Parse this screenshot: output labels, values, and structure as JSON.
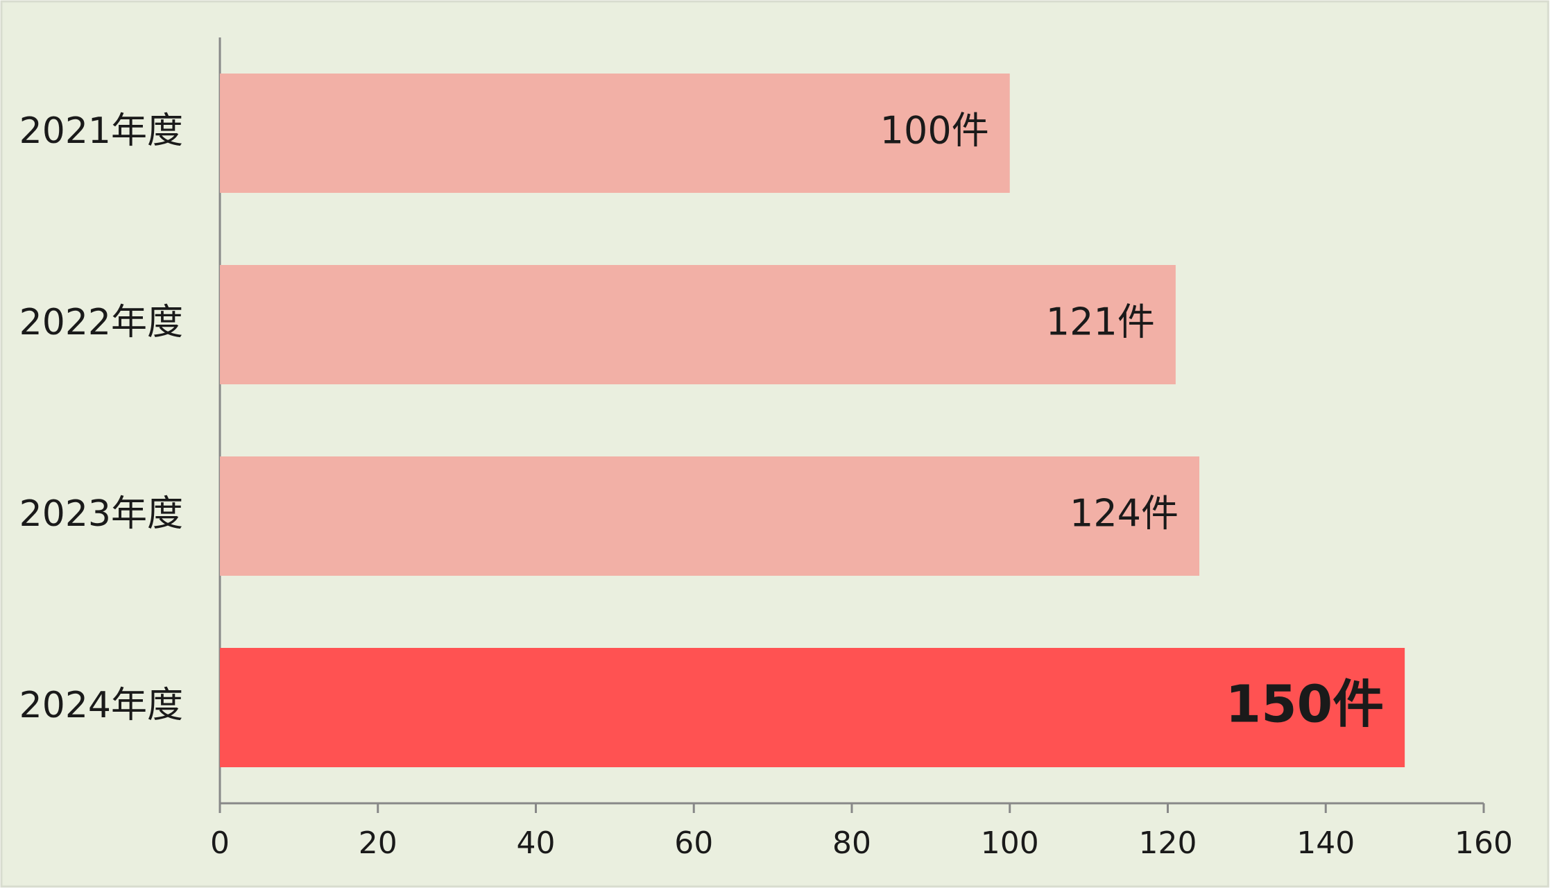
{
  "chart_data": {
    "type": "bar",
    "orientation": "horizontal",
    "categories": [
      "2021年度",
      "2022年度",
      "2023年度",
      "2024年度"
    ],
    "values": [
      100,
      121,
      124,
      150
    ],
    "value_labels": [
      "100件",
      "121件",
      "124件",
      "150件"
    ],
    "colors": [
      "#f2b0a6",
      "#f2b0a6",
      "#f2b0a6",
      "#ff5252"
    ],
    "value_label_colors": [
      "#1a1a1a",
      "#1a1a1a",
      "#1a1a1a",
      "#ffffff"
    ],
    "value_label_weights": [
      "normal",
      "normal",
      "normal",
      "bold"
    ],
    "xlim": [
      0,
      160
    ],
    "xticks": [
      0,
      20,
      40,
      60,
      80,
      100,
      120,
      140,
      160
    ],
    "background": "#eaefdf"
  }
}
